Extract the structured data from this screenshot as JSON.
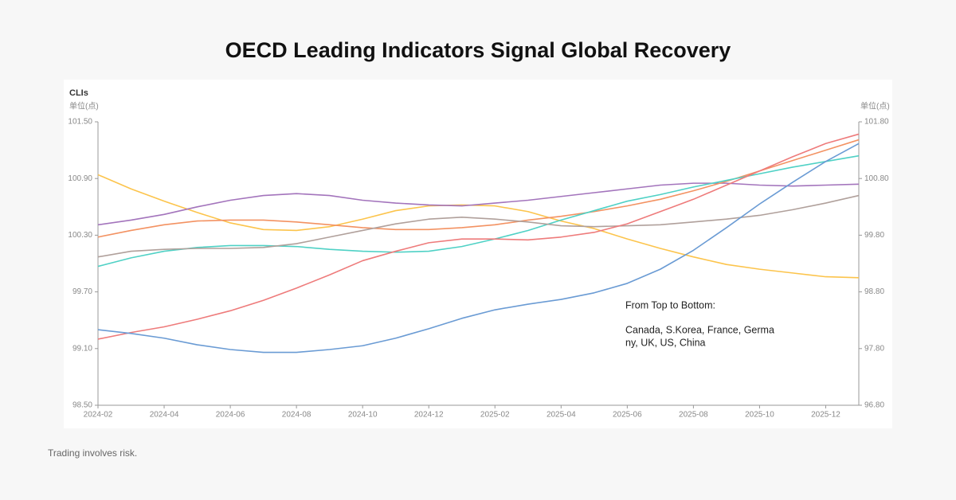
{
  "chart_data": {
    "type": "line",
    "title": "OECD Leading Indicators Signal Global Recovery",
    "y_label": "CLIs",
    "y_unit": "单位(点)",
    "y2_unit": "单位(点)",
    "annotation": [
      "From Top to Bottom:",
      "Canada, S.Korea, France, Germa",
      "ny, UK, US, China"
    ],
    "categories": [
      "2024-02",
      null,
      "2024-04",
      null,
      "2024-06",
      null,
      "2024-08",
      null,
      "2024-10",
      null,
      "2024-12",
      null,
      "2025-02",
      null,
      "2025-04",
      null,
      "2025-06",
      null,
      "2025-08",
      null,
      "2025-10",
      null,
      "2025-12",
      null
    ],
    "ylim": [
      98.5,
      101.5
    ],
    "yticks": [
      {
        "value": 98.5,
        "label": "98.50"
      },
      {
        "value": 99.1,
        "label": "99.10"
      },
      {
        "value": 99.7,
        "label": "99.70"
      },
      {
        "value": 100.3,
        "label": "100.30"
      },
      {
        "value": 100.9,
        "label": "100.90"
      },
      {
        "value": 101.5,
        "label": "101.50"
      }
    ],
    "y2lim": [
      96.8,
      101.8
    ],
    "y2ticks": [
      {
        "value": 96.8,
        "label": "96.80"
      },
      {
        "value": 97.8,
        "label": "97.80"
      },
      {
        "value": 98.8,
        "label": "98.80"
      },
      {
        "value": 99.8,
        "label": "99.80"
      },
      {
        "value": 100.8,
        "label": "100.80"
      },
      {
        "value": 101.8,
        "label": "101.80"
      }
    ],
    "grid": false,
    "series": [
      {
        "color": "#fcc44c",
        "values": [
          100.94,
          100.79,
          100.66,
          100.54,
          100.43,
          100.36,
          100.35,
          100.39,
          100.47,
          100.56,
          100.61,
          100.62,
          100.61,
          100.55,
          100.45,
          100.37,
          100.26,
          100.16,
          100.07,
          99.99,
          99.94,
          99.9,
          99.86,
          99.85
        ]
      },
      {
        "color": "#a374bc",
        "values": [
          100.41,
          100.46,
          100.52,
          100.6,
          100.67,
          100.72,
          100.74,
          100.72,
          100.67,
          100.64,
          100.62,
          100.61,
          100.64,
          100.67,
          100.71,
          100.75,
          100.79,
          100.83,
          100.85,
          100.85,
          100.83,
          100.82,
          100.83,
          100.84
        ]
      },
      {
        "color": "#f39262",
        "values": [
          100.28,
          100.35,
          100.41,
          100.45,
          100.46,
          100.46,
          100.44,
          100.41,
          100.38,
          100.36,
          100.36,
          100.38,
          100.41,
          100.46,
          100.5,
          100.55,
          100.61,
          100.68,
          100.77,
          100.87,
          100.98,
          101.09,
          101.2,
          101.31
        ]
      },
      {
        "color": "#4fd1c5",
        "values": [
          99.97,
          100.06,
          100.13,
          100.17,
          100.19,
          100.19,
          100.18,
          100.15,
          100.13,
          100.12,
          100.13,
          100.18,
          100.26,
          100.35,
          100.46,
          100.56,
          100.66,
          100.73,
          100.81,
          100.88,
          100.95,
          101.02,
          101.08,
          101.14
        ]
      },
      {
        "color": "#b0a09b",
        "values": [
          100.07,
          100.13,
          100.15,
          100.16,
          100.16,
          100.17,
          100.21,
          100.28,
          100.35,
          100.42,
          100.47,
          100.49,
          100.47,
          100.44,
          100.4,
          100.39,
          100.4,
          100.41,
          100.44,
          100.47,
          100.51,
          100.57,
          100.64,
          100.72
        ]
      },
      {
        "color": "#ee7b7b",
        "values": [
          99.2,
          99.27,
          99.33,
          99.41,
          99.5,
          99.61,
          99.74,
          99.88,
          100.03,
          100.13,
          100.22,
          100.26,
          100.26,
          100.25,
          100.28,
          100.33,
          100.42,
          100.55,
          100.68,
          100.83,
          100.98,
          101.13,
          101.27,
          101.37
        ]
      },
      {
        "color": "#6a9bd4",
        "values": [
          99.3,
          99.26,
          99.21,
          99.14,
          99.09,
          99.06,
          99.06,
          99.09,
          99.13,
          99.21,
          99.31,
          99.42,
          99.51,
          99.57,
          99.62,
          99.69,
          99.79,
          99.94,
          100.14,
          100.38,
          100.63,
          100.86,
          101.08,
          101.27
        ]
      }
    ]
  },
  "footer": "Trading involves risk."
}
